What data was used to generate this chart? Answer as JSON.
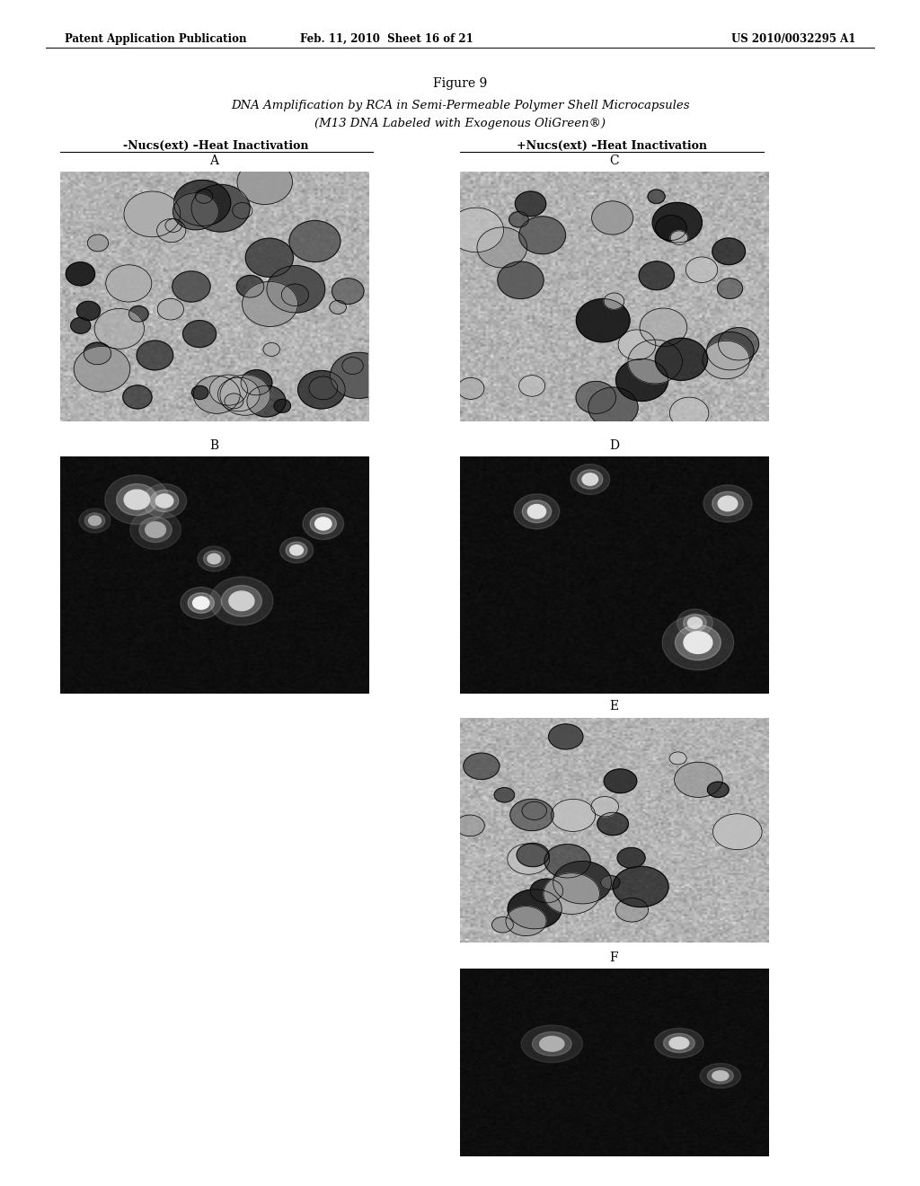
{
  "page_header_left": "Patent Application Publication",
  "page_header_mid": "Feb. 11, 2010  Sheet 16 of 21",
  "page_header_right": "US 2010/0032295 A1",
  "figure_label": "Figure 9",
  "title_line1": "DNA Amplification by RCA in Semi-Permeable Polymer Shell Microcapsules",
  "title_line2": "(M13 DNA Labeled with Exogenous OliGreen®)",
  "left_col_header": "-Nucs(ext) –Heat Inactivation",
  "right_col_header": "+Nucs(ext) –Heat Inactivation",
  "panel_labels": [
    "A",
    "B",
    "C",
    "D",
    "E",
    "F"
  ],
  "bg_color": "#ffffff",
  "header_color": "#000000"
}
